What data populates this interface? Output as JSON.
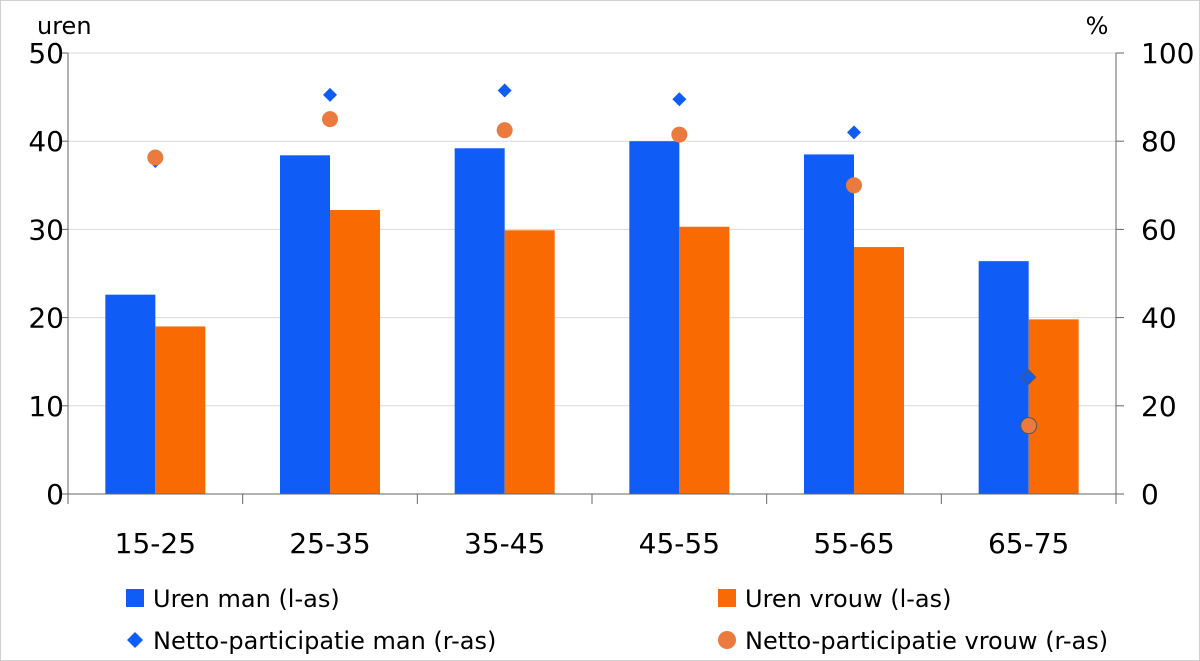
{
  "chart_data": {
    "type": "bar",
    "categories": [
      "15-25",
      "25-35",
      "35-45",
      "45-55",
      "55-65",
      "65-75"
    ],
    "left_axis": {
      "label": "uren",
      "ylim": [
        0,
        50
      ],
      "ticks": [
        "0",
        "10",
        "20",
        "30",
        "40",
        "50"
      ]
    },
    "right_axis": {
      "label": "%",
      "ylim": [
        0,
        100
      ],
      "ticks": [
        "0",
        "20",
        "40",
        "60",
        "80",
        "100"
      ]
    },
    "series": [
      {
        "name": "Uren man (l-as)",
        "kind": "bar",
        "axis": "left",
        "color": "#0f5cf7",
        "values": [
          22.6,
          38.4,
          39.2,
          40.0,
          38.5,
          26.4
        ]
      },
      {
        "name": "Uren vrouw (l-as)",
        "kind": "bar",
        "axis": "left",
        "color": "#fa6a03",
        "values": [
          19.0,
          32.2,
          29.9,
          30.3,
          28.0,
          19.8
        ]
      },
      {
        "name": "Netto-participatie man (r-as)",
        "kind": "diamond",
        "axis": "right",
        "color": "#0f5cf7",
        "values": [
          75.5,
          90.5,
          91.5,
          89.5,
          82.0,
          26.5
        ]
      },
      {
        "name": "Netto-participatie vrouw (r-as)",
        "kind": "circle",
        "axis": "right",
        "color": "#ea7a3e",
        "values": [
          76.3,
          85.0,
          82.5,
          81.5,
          70.0,
          15.5
        ]
      }
    ],
    "grid": "horizontal",
    "legend": "bottom"
  }
}
